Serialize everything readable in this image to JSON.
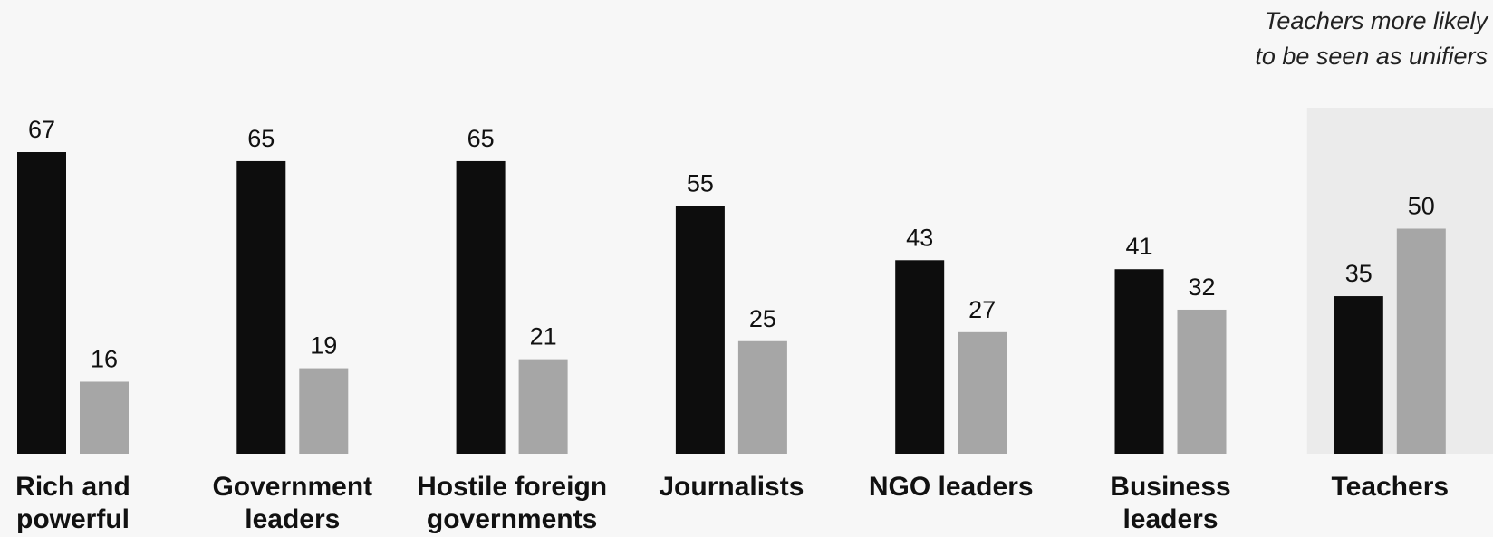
{
  "chart_data": {
    "type": "bar",
    "annotation": "Teachers more likely to be seen as unifiers",
    "categories": [
      "Rich and powerful",
      "Government leaders",
      "Hostile foreign governments",
      "Journalists",
      "NGO leaders",
      "Business leaders",
      "Teachers"
    ],
    "series": [
      {
        "color": "#0d0d0d",
        "values": [
          67,
          65,
          65,
          55,
          43,
          41,
          35
        ]
      },
      {
        "color": "#a6a6a6",
        "values": [
          16,
          19,
          21,
          25,
          27,
          32,
          50
        ]
      }
    ],
    "highlight_category": 6,
    "highlight_color": "#ebebeb"
  }
}
